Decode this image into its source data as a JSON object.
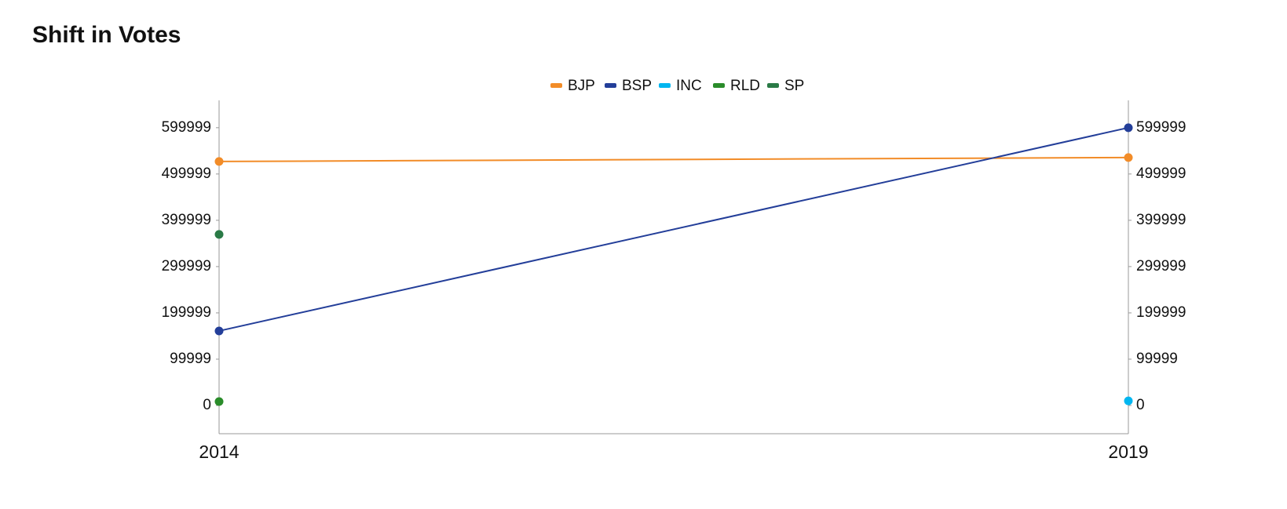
{
  "chart_data": {
    "type": "line",
    "title": "Shift in Votes",
    "categories": [
      "2014",
      "2019"
    ],
    "series": [
      {
        "name": "BJP",
        "color": "#f28c28",
        "values": [
          527000,
          535600
        ]
      },
      {
        "name": "BSP",
        "color": "#233e99",
        "values": [
          161000,
          599999
        ]
      },
      {
        "name": "INC",
        "color": "#00b6f0",
        "values": [
          null,
          10000
        ]
      },
      {
        "name": "RLD",
        "color": "#2a8c2a",
        "values": [
          8500,
          null
        ]
      },
      {
        "name": "SP",
        "color": "#2a7a46",
        "values": [
          369500,
          null
        ]
      }
    ],
    "ylim": [
      -61000,
      659000
    ],
    "yticks": [
      0,
      99999,
      199999,
      299999,
      399999,
      499999,
      599999
    ],
    "y2lim": [
      -61000,
      659000
    ],
    "y2ticks": [
      0,
      99999,
      199999,
      299999,
      399999,
      499999,
      599999
    ],
    "legend": "top"
  }
}
